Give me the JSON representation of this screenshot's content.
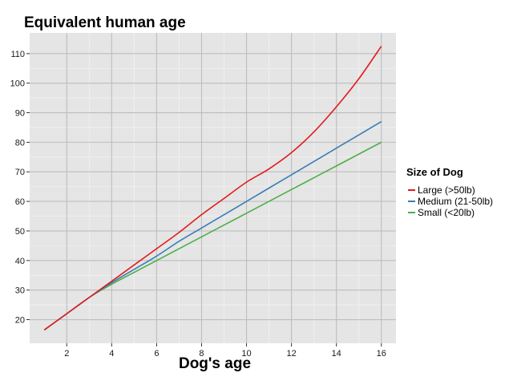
{
  "chart_data": {
    "type": "line",
    "title": "Equivalent human age",
    "xlabel": "Dog's age",
    "ylabel": "",
    "xlim": [
      0.35,
      16.65
    ],
    "ylim": [
      12,
      117
    ],
    "xticks": [
      2,
      4,
      6,
      8,
      10,
      12,
      14,
      16
    ],
    "yticks": [
      20,
      30,
      40,
      50,
      60,
      70,
      80,
      90,
      100,
      110
    ],
    "grid": true,
    "legend": {
      "title": "Size of Dog",
      "position": "right"
    },
    "series": [
      {
        "name": "Large (>50lb)",
        "color": "#e41a1c",
        "x": [
          1,
          2,
          3,
          4,
          5,
          6,
          7,
          8,
          9,
          10,
          11,
          12,
          13,
          14,
          15,
          16
        ],
        "y": [
          16.5,
          22,
          27.5,
          33,
          38.5,
          44,
          49.5,
          55.5,
          61,
          66.5,
          71,
          76.5,
          83.5,
          92,
          101.5,
          112.5
        ]
      },
      {
        "name": "Medium (21-50lb)",
        "color": "#377eb8",
        "x": [
          1,
          2,
          3,
          4,
          5,
          6,
          7,
          8,
          9,
          10,
          11,
          12,
          13,
          14,
          15,
          16
        ],
        "y": [
          16.5,
          22,
          27.5,
          32.5,
          37,
          41.5,
          46.5,
          51,
          55.5,
          60,
          64.5,
          69,
          73.5,
          78,
          82.5,
          87
        ]
      },
      {
        "name": "Small (<20lb)",
        "color": "#4daf4a",
        "x": [
          1,
          2,
          3,
          4,
          5,
          6,
          7,
          8,
          9,
          10,
          11,
          12,
          13,
          14,
          15,
          16
        ],
        "y": [
          16.5,
          22,
          27.5,
          32,
          36,
          40,
          44,
          48,
          52,
          56,
          60,
          64,
          68,
          72,
          76,
          80
        ]
      }
    ]
  }
}
